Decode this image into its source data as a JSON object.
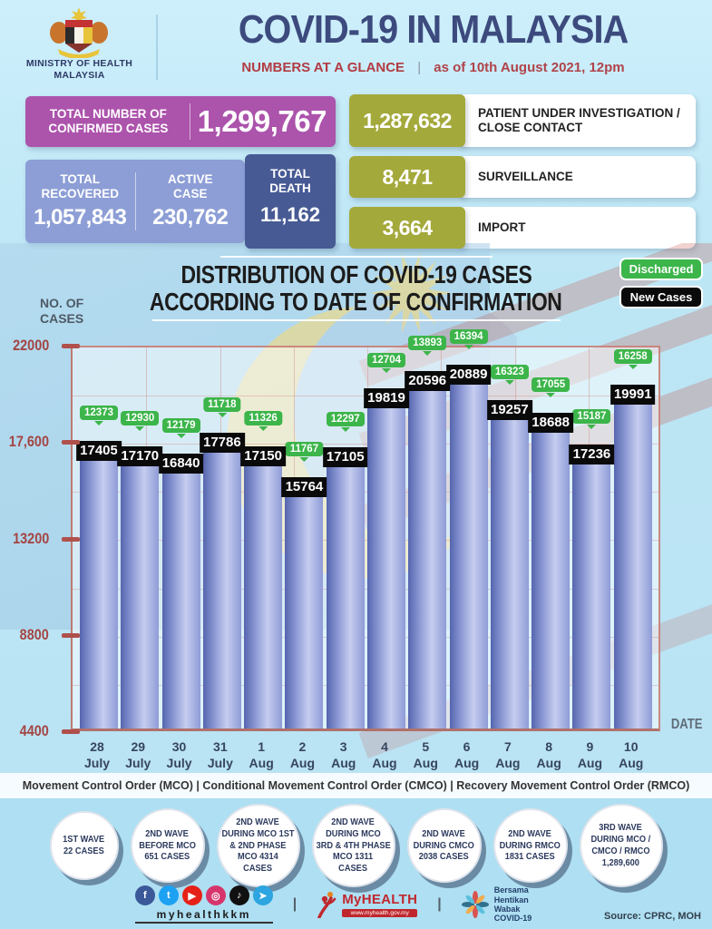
{
  "header": {
    "ministry_line1": "MINISTRY OF HEALTH",
    "ministry_line2": "MALAYSIA",
    "title": "COVID-19 IN MALAYSIA",
    "subtitle": "NUMBERS AT A GLANCE",
    "divider": "|",
    "as_of": "as of 10th August 2021, 12pm"
  },
  "stats": {
    "confirmed_label": "TOTAL NUMBER OF CONFIRMED CASES",
    "confirmed_value": "1,299,767",
    "recovered_label": "TOTAL RECOVERED",
    "recovered_value": "1,057,843",
    "active_label": "ACTIVE CASE",
    "active_value": "230,762",
    "death_label": "TOTAL DEATH",
    "death_value": "11,162",
    "right_rows": [
      {
        "value": "1,287,632",
        "label": "PATIENT UNDER INVESTIGATION / CLOSE CONTACT"
      },
      {
        "value": "8,471",
        "label": "SURVEILLANCE"
      },
      {
        "value": "3,664",
        "label": "IMPORT"
      }
    ]
  },
  "chart": {
    "title_line1": "DISTRIBUTION OF COVID-19 CASES",
    "title_line2": "ACCORDING TO DATE OF CONFIRMATION",
    "y_axis_label_line1": "NO. OF",
    "y_axis_label_line2": "CASES",
    "x_axis_label": "DATE"
  },
  "chart_data": {
    "type": "bar",
    "title": "DISTRIBUTION OF COVID-19 CASES ACCORDING TO DATE OF CONFIRMATION",
    "categories": [
      "28 July",
      "29 July",
      "30 July",
      "31 July",
      "1 Aug",
      "2 Aug",
      "3 Aug",
      "4 Aug",
      "5 Aug",
      "6 Aug",
      "7 Aug",
      "8 Aug",
      "9 Aug",
      "10 Aug"
    ],
    "series": [
      {
        "name": "New Cases",
        "color": "#0a0a0a",
        "values": [
          17405,
          17170,
          16840,
          17786,
          17150,
          15764,
          17105,
          19819,
          20596,
          20889,
          19257,
          18688,
          17236,
          19991
        ]
      },
      {
        "name": "Discharged",
        "color": "#3cb54a",
        "values": [
          12373,
          12930,
          12179,
          11718,
          11326,
          11767,
          12297,
          12704,
          13893,
          16394,
          16323,
          17055,
          15187,
          16258
        ]
      }
    ],
    "ylabel": "NO. OF CASES",
    "xlabel": "DATE",
    "ylim": [
      4400,
      22000
    ],
    "ytick_labels": [
      "22000",
      "17,600",
      "13200",
      "8800",
      "4400"
    ],
    "legend_position": "top-right",
    "grid": true
  },
  "mco_note": "Movement Control Order (MCO) | Conditional Movement Control Order (CMCO) | Recovery Movement Control Order (RMCO)",
  "waves": [
    {
      "lines": [
        "1ST WAVE",
        "22 CASES"
      ]
    },
    {
      "lines": [
        "2ND WAVE",
        "BEFORE MCO",
        "651 CASES"
      ]
    },
    {
      "lines": [
        "2ND WAVE",
        "DURING MCO 1ST",
        "& 2ND PHASE",
        "MCO 4314",
        "CASES"
      ]
    },
    {
      "lines": [
        "2ND WAVE",
        "DURING MCO",
        "3RD & 4TH PHASE",
        "MCO 1311",
        "CASES"
      ]
    },
    {
      "lines": [
        "2ND WAVE",
        "DURING CMCO",
        "2038 CASES"
      ]
    },
    {
      "lines": [
        "2ND WAVE",
        "DURING RMCO",
        "1831 CASES"
      ]
    },
    {
      "lines": [
        "3RD WAVE",
        "DURING MCO /",
        "CMCO / RMCO",
        "1,289,600"
      ]
    }
  ],
  "footer": {
    "handle": "myhealthkkm",
    "divider": "|",
    "myhealth_name": "MyHEALTH",
    "myhealth_url": "www.myhealth.gov.my",
    "bersama_lines": [
      "Bersama",
      "Hentikan",
      "Wabak",
      "COVID-19"
    ],
    "source": "Source: CPRC, MOH",
    "social": [
      {
        "name": "facebook",
        "color": "#3b5998",
        "glyph": "f"
      },
      {
        "name": "twitter",
        "color": "#1da1f2",
        "glyph": "t"
      },
      {
        "name": "youtube",
        "color": "#e62117",
        "glyph": "▶"
      },
      {
        "name": "instagram",
        "color": "#d6366c",
        "glyph": "◎"
      },
      {
        "name": "tiktok",
        "color": "#111111",
        "glyph": "♪"
      },
      {
        "name": "telegram",
        "color": "#2ca5e0",
        "glyph": "➤"
      }
    ]
  },
  "colors": {
    "purple": "#ac53ac",
    "periwinkle": "#8d9ed6",
    "navy": "#475a94",
    "olive": "#a4a93b",
    "green": "#3cb54a",
    "black": "#0a0a0a",
    "maroon": "#a8443f",
    "title_navy": "#3c4a7e",
    "crimson": "#b23b43",
    "bar_dark": "#5565ae",
    "bar_light": "#c6cdf0"
  }
}
